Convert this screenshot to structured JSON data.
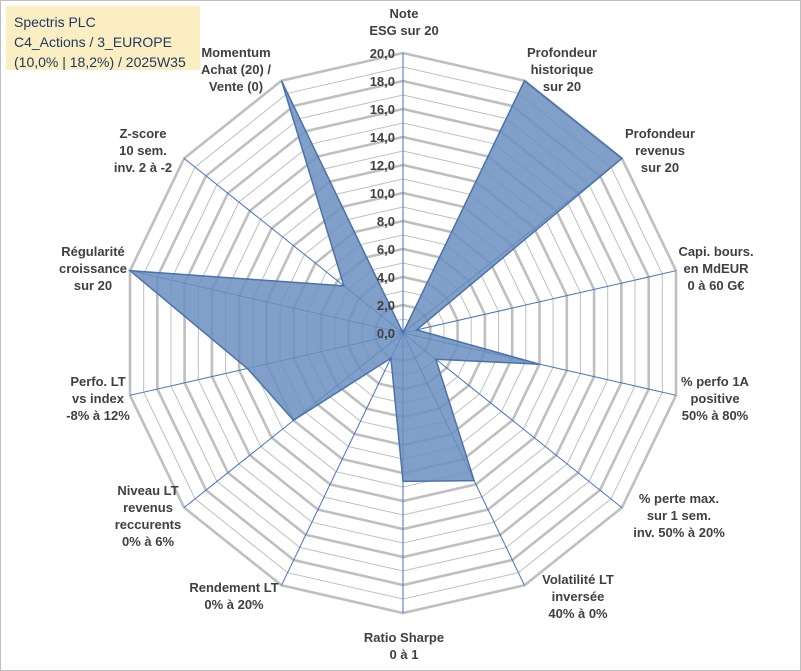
{
  "header": {
    "line1": "Spectris PLC",
    "line2": "C4_Actions / 3_EUROPE",
    "line3": "(10,0% | 18,2%) / 2025W35"
  },
  "chart_data": {
    "type": "radar",
    "rmin": 0,
    "rmax": 20,
    "tick_step": 2,
    "tick_labels": [
      "0,0",
      "2,0",
      "4,0",
      "6,0",
      "8,0",
      "10,0",
      "12,0",
      "14,0",
      "16,0",
      "18,0",
      "20,0"
    ],
    "axes": [
      {
        "label": [
          "Note",
          "ESG sur 20"
        ],
        "value": 0
      },
      {
        "label": [
          "Profondeur",
          "historique",
          "sur 20"
        ],
        "value": 20
      },
      {
        "label": [
          "Profondeur",
          "revenus",
          "sur 20"
        ],
        "value": 20
      },
      {
        "label": [
          "Capi. bours.",
          "en MdEUR",
          "0 à 60 G€"
        ],
        "value": 1
      },
      {
        "label": [
          "% perfo 1A",
          "positive",
          "50% à 80%"
        ],
        "value": 10
      },
      {
        "label": [
          "% perte max.",
          "sur 1 sem.",
          "inv. 50% à 20%"
        ],
        "value": 3
      },
      {
        "label": [
          "Volatilité LT",
          "inversée",
          "40% à 0%"
        ],
        "value": 11.7
      },
      {
        "label": [
          "Ratio Sharpe",
          "0 à 1"
        ],
        "value": 10.6
      },
      {
        "label": [
          "Rendement LT",
          "0% à 20%"
        ],
        "value": 2
      },
      {
        "label": [
          "Niveau LT",
          "revenus",
          "reccurents",
          "0% à 6%"
        ],
        "value": 10
      },
      {
        "label": [
          "Perfo. LT",
          "vs index",
          "-8% à 12%"
        ],
        "value": 11.4
      },
      {
        "label": [
          "Régularité",
          "croissance",
          "sur 20"
        ],
        "value": 20
      },
      {
        "label": [
          "Z-score",
          "10 sem.",
          "inv. 2 à -2"
        ],
        "value": 5.4
      },
      {
        "label": [
          "Momentum",
          "Achat (20) /",
          "Vente (0)"
        ],
        "value": 20
      }
    ],
    "colors": {
      "fill": "#6a8fc0",
      "stroke": "#4a72ab",
      "grid": "#bfbfbf",
      "spoke": "#4472c4"
    }
  }
}
